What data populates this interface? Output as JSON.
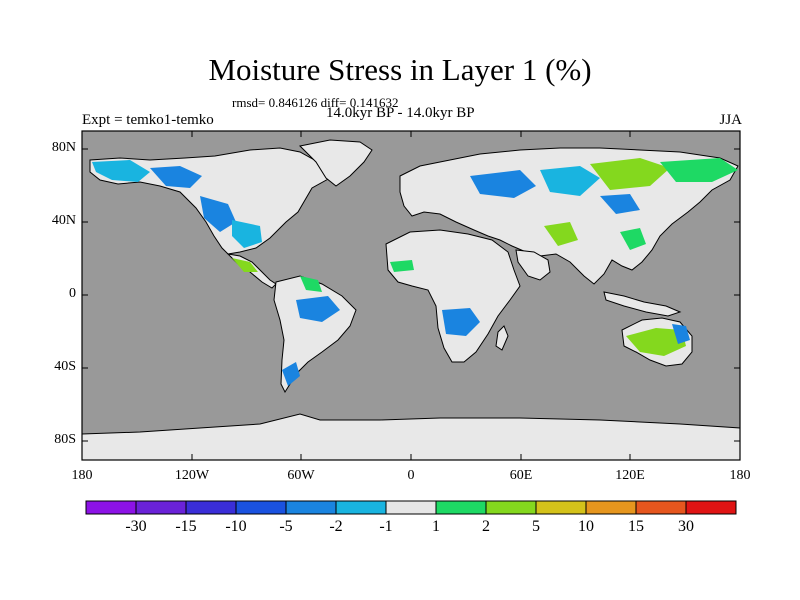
{
  "title": "Moisture Stress in Layer 1 (%)",
  "stats": "rmsd= 0.846126 diff= 0.141632",
  "period": "14.0kyr BP - 14.0kyr BP",
  "experiment": "Expt = temko1-temko",
  "season": "JJA",
  "lat_labels": [
    "80N",
    "40N",
    "0",
    "40S",
    "80S"
  ],
  "lon_labels": [
    "180",
    "120W",
    "60W",
    "0",
    "60E",
    "120E",
    "180"
  ],
  "colorbar": {
    "labels": [
      "-30",
      "-15",
      "-10",
      "-5",
      "-2",
      "-1",
      "1",
      "2",
      "5",
      "10",
      "15",
      "30"
    ],
    "colors": [
      "#8c12e6",
      "#6a22d8",
      "#3a2ed8",
      "#1a52e0",
      "#1a84e0",
      "#19b4e0",
      "#e6e6e6",
      "#1ed964",
      "#84d81e",
      "#d4c21a",
      "#e6961e",
      "#e6561e",
      "#e01414"
    ]
  },
  "colors": {
    "ocean": "#999999",
    "land_neutral": "#e8e8e8",
    "coast": "#000000"
  }
}
